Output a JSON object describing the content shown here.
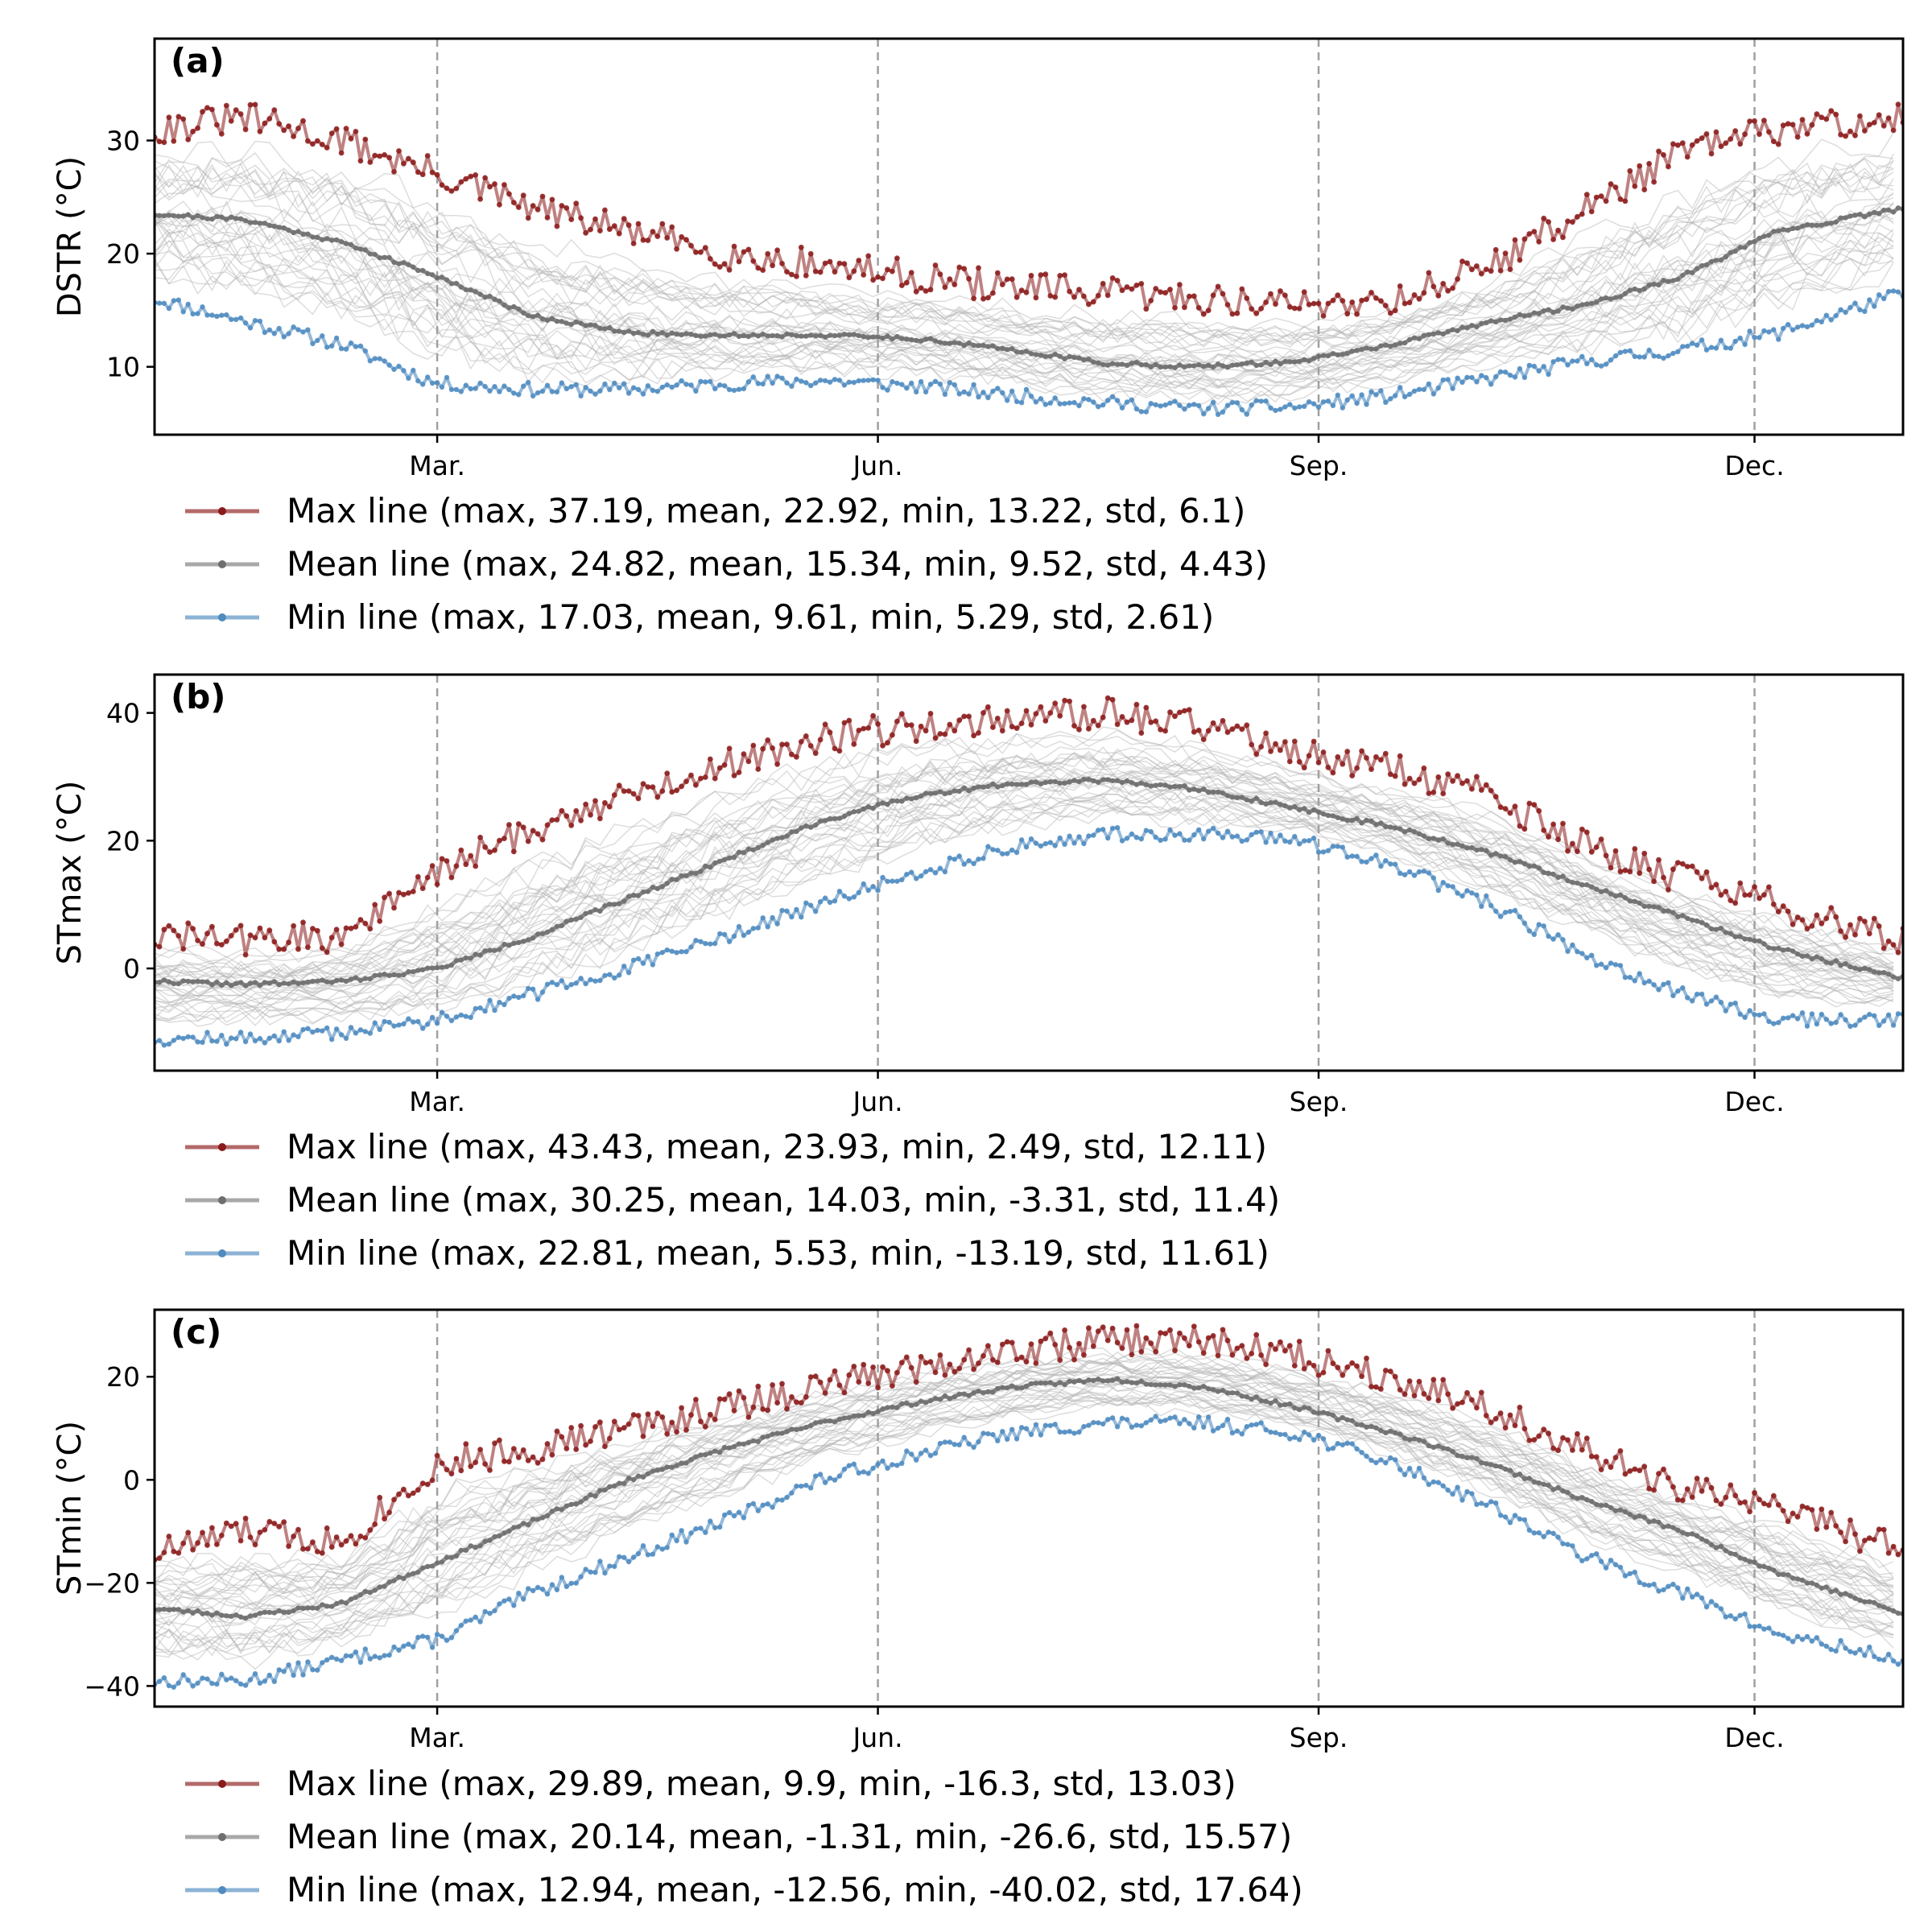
{
  "colors": {
    "max_line": "#8b1a1a",
    "mean_line": "#6e6e6e",
    "min_line": "#4f8bbf",
    "members": "#b4b4b4",
    "month_gridline": "#a0a0a0"
  },
  "chart_data": [
    {
      "type": "line",
      "panel_label": "(a)",
      "ylabel": "DSTR (°C)",
      "xlabel": "",
      "x_tick_labels": [
        "Mar.",
        "Jun.",
        "Sep.",
        "Dec."
      ],
      "x_tick_days": [
        60,
        152,
        244,
        335
      ],
      "y_ticks": [
        10,
        20,
        30
      ],
      "xlim": [
        1,
        366
      ],
      "ylim": [
        4,
        39
      ],
      "grid": "dashed vertical lines at month ticks",
      "legend_position": "below plot",
      "ensemble_background": true,
      "series": [
        {
          "name": "Max line",
          "legend": "Max line (max, 37.19, mean, 22.92, min, 13.22, std, 6.1)",
          "color_key": "max_line",
          "x": [
            1,
            20,
            40,
            60,
            80,
            100,
            120,
            140,
            160,
            180,
            200,
            220,
            240,
            260,
            280,
            300,
            320,
            340,
            366
          ],
          "y": [
            31,
            32,
            30,
            27,
            24,
            22,
            20,
            19,
            18,
            17,
            16.5,
            16,
            15.5,
            16,
            19,
            24,
            29,
            31,
            32
          ]
        },
        {
          "name": "Mean line",
          "legend": "Mean line (max, 24.82, mean, 15.34, min, 9.52, std, 4.43)",
          "color_key": "mean_line",
          "x": [
            1,
            20,
            40,
            60,
            80,
            100,
            120,
            140,
            160,
            180,
            200,
            220,
            240,
            260,
            280,
            300,
            320,
            340,
            366
          ],
          "y": [
            23.5,
            23,
            21,
            18,
            14.5,
            13,
            12.8,
            12.8,
            12.5,
            11.5,
            10.3,
            10,
            10.5,
            12,
            14,
            15.5,
            18,
            22,
            24
          ]
        },
        {
          "name": "Min line",
          "legend": "Min line (max, 17.03, mean, 9.61, min, 5.29, std, 2.61)",
          "color_key": "min_line",
          "x": [
            1,
            20,
            40,
            60,
            80,
            100,
            120,
            140,
            160,
            180,
            200,
            220,
            240,
            260,
            280,
            300,
            320,
            340,
            366
          ],
          "y": [
            16,
            14,
            12,
            8.5,
            8,
            8,
            8.5,
            8.8,
            8.3,
            7.5,
            6.8,
            6.3,
            6.5,
            7.5,
            9,
            10.5,
            11.5,
            13,
            16.5
          ]
        }
      ]
    },
    {
      "type": "line",
      "panel_label": "(b)",
      "ylabel": "STmax (°C)",
      "xlabel": "",
      "x_tick_labels": [
        "Mar.",
        "Jun.",
        "Sep.",
        "Dec."
      ],
      "x_tick_days": [
        60,
        152,
        244,
        335
      ],
      "y_ticks": [
        0,
        20,
        40
      ],
      "xlim": [
        1,
        366
      ],
      "ylim": [
        -16,
        46
      ],
      "grid": "dashed vertical lines at month ticks",
      "legend_position": "below plot",
      "ensemble_background": true,
      "series": [
        {
          "name": "Max line",
          "legend": "Max line (max, 43.43, mean, 23.93, min, 2.49, std, 12.11)",
          "color_key": "max_line",
          "x": [
            1,
            20,
            40,
            60,
            80,
            100,
            120,
            140,
            160,
            180,
            200,
            220,
            240,
            260,
            280,
            300,
            320,
            340,
            366
          ],
          "y": [
            5,
            4.5,
            5,
            15,
            22,
            27,
            32,
            36,
            38,
            39,
            40,
            38,
            34,
            31,
            27,
            19,
            14,
            10,
            4
          ]
        },
        {
          "name": "Mean line",
          "legend": "Mean line (max, 30.25, mean, 14.03, min, -3.31, std, 11.4)",
          "color_key": "mean_line",
          "x": [
            1,
            20,
            40,
            60,
            80,
            100,
            120,
            140,
            160,
            180,
            200,
            220,
            240,
            260,
            280,
            300,
            320,
            340,
            366
          ],
          "y": [
            -2,
            -2.5,
            -2,
            0,
            5,
            11,
            17,
            23,
            27,
            29,
            29.5,
            28,
            25,
            22,
            18,
            13,
            8,
            3,
            -1.5
          ]
        },
        {
          "name": "Min line",
          "legend": "Min line (max, 22.81, mean, 5.53, min, -13.19, std, 11.61)",
          "color_key": "min_line",
          "x": [
            1,
            20,
            40,
            60,
            80,
            100,
            120,
            140,
            160,
            180,
            200,
            220,
            240,
            260,
            280,
            300,
            320,
            340,
            366
          ],
          "y": [
            -11,
            -11,
            -10,
            -8,
            -4,
            0,
            5,
            10,
            15,
            19,
            21,
            21,
            20,
            16,
            10,
            2,
            -4,
            -8,
            -8
          ]
        }
      ]
    },
    {
      "type": "line",
      "panel_label": "(c)",
      "ylabel": "STmin (°C)",
      "xlabel": "",
      "x_tick_labels": [
        "Mar.",
        "Jun.",
        "Sep.",
        "Dec."
      ],
      "x_tick_days": [
        60,
        152,
        244,
        335
      ],
      "y_ticks": [
        -40,
        -20,
        0,
        20
      ],
      "xlim": [
        1,
        366
      ],
      "ylim": [
        -44,
        33
      ],
      "grid": "dashed vertical lines at month ticks",
      "legend_position": "below plot",
      "ensemble_background": true,
      "series": [
        {
          "name": "Max line",
          "legend": "Max line (max, 29.89, mean, 9.9, min, -16.3, std, 13.03)",
          "color_key": "max_line",
          "x": [
            1,
            20,
            40,
            60,
            80,
            100,
            120,
            140,
            160,
            180,
            200,
            220,
            240,
            260,
            280,
            300,
            320,
            340,
            366
          ],
          "y": [
            -14,
            -10,
            -12,
            3,
            6,
            10,
            14,
            18,
            22,
            25,
            27,
            27,
            24,
            20,
            14,
            5,
            -2,
            -5,
            -14
          ]
        },
        {
          "name": "Mean line",
          "legend": "Mean line (max, 20.14, mean, -1.31, min, -26.6, std, 15.57)",
          "color_key": "mean_line",
          "x": [
            1,
            20,
            40,
            60,
            80,
            100,
            120,
            140,
            160,
            180,
            200,
            220,
            240,
            260,
            280,
            300,
            320,
            340,
            366
          ],
          "y": [
            -25,
            -26.5,
            -24,
            -16,
            -8,
            0,
            6,
            11,
            15,
            18,
            19.5,
            18,
            14,
            9,
            3,
            -4,
            -10,
            -18,
            -26
          ]
        },
        {
          "name": "Min line",
          "legend": "Min line (max, 12.94, mean, -12.56, min, -40.02, std, 17.64)",
          "color_key": "min_line",
          "x": [
            1,
            20,
            40,
            60,
            80,
            100,
            120,
            140,
            160,
            180,
            200,
            220,
            240,
            260,
            280,
            300,
            320,
            340,
            366
          ],
          "y": [
            -39,
            -39,
            -35,
            -31,
            -22,
            -15,
            -8,
            0,
            5,
            9,
            11,
            11,
            9,
            3,
            -5,
            -15,
            -22,
            -30,
            -35
          ]
        }
      ]
    }
  ]
}
